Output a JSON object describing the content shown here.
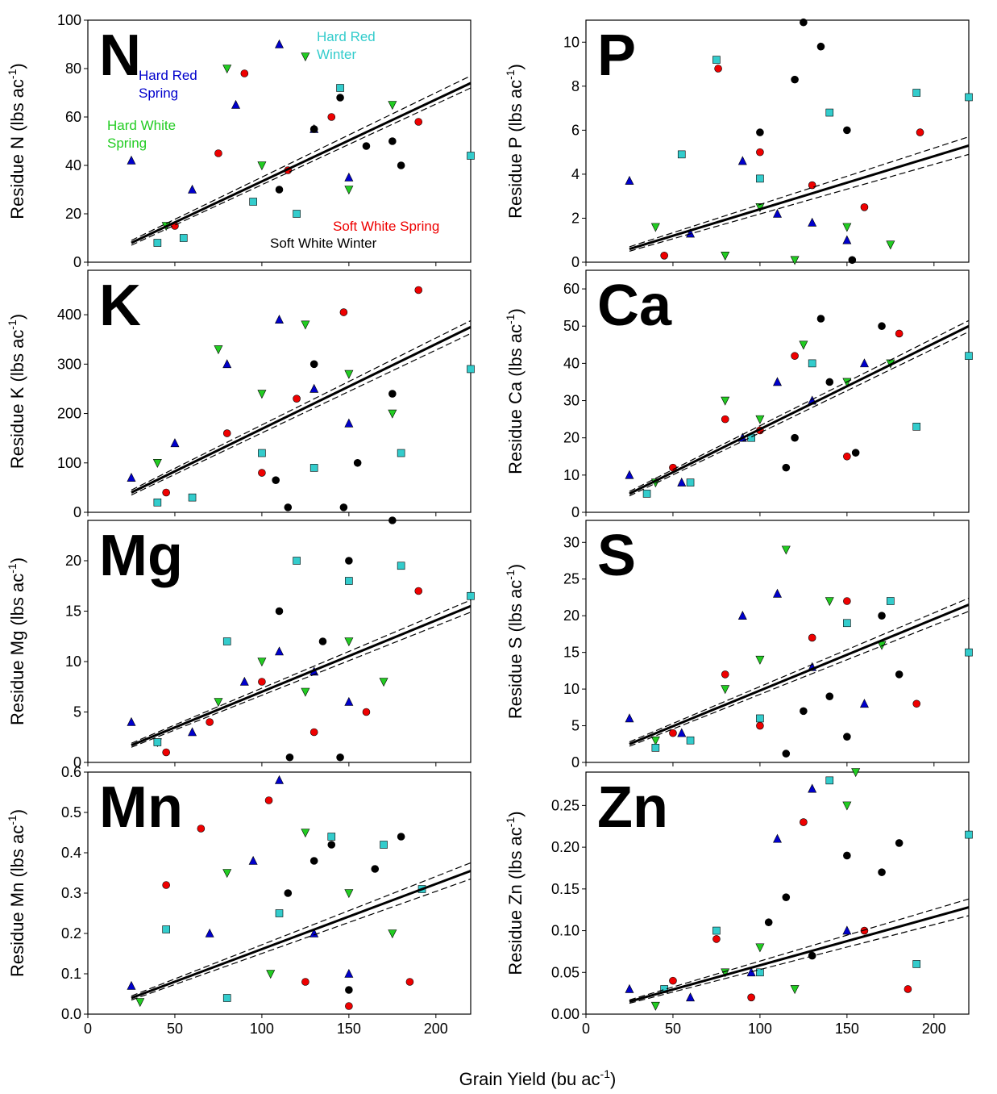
{
  "chart_data": {
    "type": "scatter",
    "xlabel": {
      "text": "Grain Yield (bu ac",
      "sup": "-1",
      "end": ")"
    },
    "xlim": [
      0,
      220
    ],
    "xticks": [
      0,
      50,
      100,
      150,
      200
    ],
    "series_styles": [
      {
        "name": [
          "Hard Red",
          "Spring"
        ],
        "color": "#0000cc",
        "marker": "triangle-up"
      },
      {
        "name": [
          "Hard White",
          "Spring"
        ],
        "color": "#22cc22",
        "marker": "triangle-down"
      },
      {
        "name": [
          "Hard Red",
          "Winter"
        ],
        "color": "#33cccc",
        "marker": "square"
      },
      {
        "name": [
          "Soft White Spring"
        ],
        "color": "#ee0000",
        "marker": "circle"
      },
      {
        "name": [
          "Soft White Winter"
        ],
        "color": "#000000",
        "marker": "circle"
      }
    ],
    "panels": [
      {
        "label": "N",
        "ylabel": {
          "text": "Residue N (lbs ac",
          "sup": "-1",
          "end": ")"
        },
        "ylim": [
          0,
          100
        ],
        "yticks": [
          0,
          20,
          40,
          60,
          80,
          100
        ],
        "fit": {
          "x": [
            25,
            220
          ],
          "y": [
            8,
            74
          ],
          "upper": [
            9,
            77
          ],
          "lower": [
            7,
            72
          ]
        },
        "series": [
          {
            "x": [
              25,
              60,
              85,
              110,
              130,
              150
            ],
            "y": [
              42,
              30,
              65,
              90,
              55,
              35
            ]
          },
          {
            "x": [
              45,
              80,
              100,
              125,
              150,
              175
            ],
            "y": [
              15,
              80,
              40,
              85,
              30,
              65
            ]
          },
          {
            "x": [
              40,
              55,
              95,
              120,
              145,
              220
            ],
            "y": [
              8,
              10,
              25,
              20,
              72,
              44
            ]
          },
          {
            "x": [
              50,
              75,
              90,
              115,
              140,
              190
            ],
            "y": [
              15,
              45,
              78,
              38,
              60,
              58
            ]
          },
          {
            "x": [
              110,
              130,
              145,
              160,
              175,
              180
            ],
            "y": [
              30,
              55,
              68,
              48,
              50,
              40
            ]
          }
        ]
      },
      {
        "label": "P",
        "ylabel": {
          "text": "Residue P (lbs ac",
          "sup": "-1",
          "end": ")"
        },
        "ylim": [
          0,
          11
        ],
        "yticks": [
          0,
          2,
          4,
          6,
          8,
          10
        ],
        "fit": {
          "x": [
            25,
            220
          ],
          "y": [
            0.6,
            5.3
          ],
          "upper": [
            0.7,
            5.7
          ],
          "lower": [
            0.5,
            4.9
          ]
        },
        "series": [
          {
            "x": [
              25,
              60,
              90,
              110,
              130,
              150
            ],
            "y": [
              3.7,
              1.3,
              4.6,
              2.2,
              1.8,
              1.0
            ]
          },
          {
            "x": [
              40,
              80,
              100,
              120,
              150,
              175
            ],
            "y": [
              1.6,
              0.3,
              2.5,
              0.1,
              1.6,
              0.8
            ]
          },
          {
            "x": [
              55,
              75,
              100,
              140,
              190,
              220
            ],
            "y": [
              4.9,
              9.2,
              3.8,
              6.8,
              7.7,
              7.5
            ]
          },
          {
            "x": [
              45,
              76,
              100,
              130,
              160,
              192
            ],
            "y": [
              0.3,
              8.8,
              5.0,
              3.5,
              2.5,
              5.9
            ]
          },
          {
            "x": [
              100,
              120,
              125,
              135,
              150,
              153
            ],
            "y": [
              5.9,
              8.3,
              10.9,
              9.8,
              6.0,
              0.1
            ]
          }
        ]
      },
      {
        "label": "K",
        "ylabel": {
          "text": "Residue K (lbs ac",
          "sup": "-1",
          "end": ")"
        },
        "ylim": [
          0,
          490
        ],
        "yticks": [
          0,
          100,
          200,
          300,
          400
        ],
        "fit": {
          "x": [
            25,
            220
          ],
          "y": [
            40,
            375
          ],
          "upper": [
            45,
            388
          ],
          "lower": [
            35,
            362
          ]
        },
        "series": [
          {
            "x": [
              25,
              50,
              80,
              110,
              130,
              150
            ],
            "y": [
              70,
              140,
              300,
              390,
              250,
              180
            ]
          },
          {
            "x": [
              40,
              75,
              100,
              125,
              150,
              175
            ],
            "y": [
              100,
              330,
              240,
              380,
              280,
              200
            ]
          },
          {
            "x": [
              40,
              60,
              100,
              130,
              180,
              220
            ],
            "y": [
              20,
              30,
              120,
              90,
              120,
              290
            ]
          },
          {
            "x": [
              45,
              80,
              100,
              120,
              147,
              190
            ],
            "y": [
              40,
              160,
              80,
              230,
              405,
              450
            ]
          },
          {
            "x": [
              108,
              115,
              130,
              147,
              155,
              175
            ],
            "y": [
              65,
              10,
              300,
              10,
              100,
              240
            ]
          }
        ]
      },
      {
        "label": "Ca",
        "ylabel": {
          "text": "Residue Ca (lbs ac",
          "sup": "-1",
          "end": ")"
        },
        "ylim": [
          0,
          65
        ],
        "yticks": [
          0,
          10,
          20,
          30,
          40,
          50,
          60
        ],
        "fit": {
          "x": [
            25,
            220
          ],
          "y": [
            5,
            50
          ],
          "upper": [
            5.6,
            51.5
          ],
          "lower": [
            4.4,
            48.5
          ]
        },
        "series": [
          {
            "x": [
              25,
              55,
              90,
              110,
              130,
              160
            ],
            "y": [
              10,
              8,
              20,
              35,
              30,
              40
            ]
          },
          {
            "x": [
              40,
              80,
              100,
              125,
              150,
              175
            ],
            "y": [
              8,
              30,
              25,
              45,
              35,
              40
            ]
          },
          {
            "x": [
              35,
              60,
              95,
              130,
              190,
              220
            ],
            "y": [
              5,
              8,
              20,
              40,
              23,
              42
            ]
          },
          {
            "x": [
              50,
              80,
              100,
              120,
              150,
              180
            ],
            "y": [
              12,
              25,
              22,
              42,
              15,
              48
            ]
          },
          {
            "x": [
              115,
              120,
              135,
              140,
              155,
              170
            ],
            "y": [
              12,
              20,
              52,
              35,
              16,
              50
            ]
          }
        ]
      },
      {
        "label": "Mg",
        "ylabel": {
          "text": "Residue Mg (lbs ac",
          "sup": "-1",
          "end": ")"
        },
        "ylim": [
          0,
          24
        ],
        "yticks": [
          0,
          5,
          10,
          15,
          20
        ],
        "fit": {
          "x": [
            25,
            220
          ],
          "y": [
            1.7,
            15.5
          ],
          "upper": [
            1.9,
            16.1
          ],
          "lower": [
            1.5,
            14.9
          ]
        },
        "series": [
          {
            "x": [
              25,
              60,
              90,
              110,
              130,
              150
            ],
            "y": [
              4,
              3,
              8,
              11,
              9,
              6
            ]
          },
          {
            "x": [
              40,
              75,
              100,
              125,
              150,
              170
            ],
            "y": [
              2,
              6,
              10,
              7,
              12,
              8
            ]
          },
          {
            "x": [
              40,
              80,
              120,
              150,
              180,
              220
            ],
            "y": [
              2,
              12,
              20,
              18,
              19.5,
              16.5
            ]
          },
          {
            "x": [
              45,
              70,
              100,
              130,
              160,
              190
            ],
            "y": [
              1,
              4,
              8,
              3,
              5,
              17
            ]
          },
          {
            "x": [
              110,
              116,
              135,
              145,
              150,
              175
            ],
            "y": [
              15,
              0.5,
              12,
              0.5,
              20,
              24
            ]
          }
        ]
      },
      {
        "label": "S",
        "ylabel": {
          "text": "Residue S (lbs ac",
          "sup": "-1",
          "end": ")"
        },
        "ylim": [
          0,
          33
        ],
        "yticks": [
          0,
          5,
          10,
          15,
          20,
          25,
          30
        ],
        "fit": {
          "x": [
            25,
            220
          ],
          "y": [
            2.5,
            21.5
          ],
          "upper": [
            2.8,
            22.4
          ],
          "lower": [
            2.2,
            20.6
          ]
        },
        "series": [
          {
            "x": [
              25,
              55,
              90,
              110,
              130,
              160
            ],
            "y": [
              6,
              4,
              20,
              23,
              13,
              8
            ]
          },
          {
            "x": [
              40,
              80,
              100,
              115,
              140,
              170
            ],
            "y": [
              3,
              10,
              14,
              29,
              22,
              16
            ]
          },
          {
            "x": [
              40,
              60,
              100,
              150,
              175,
              220
            ],
            "y": [
              2,
              3,
              6,
              19,
              22,
              15
            ]
          },
          {
            "x": [
              50,
              80,
              100,
              130,
              150,
              190
            ],
            "y": [
              4,
              12,
              5,
              17,
              22,
              8
            ]
          },
          {
            "x": [
              115,
              125,
              140,
              150,
              170,
              180
            ],
            "y": [
              1.2,
              7,
              9,
              3.5,
              20,
              12
            ]
          }
        ]
      },
      {
        "label": "Mn",
        "ylabel": {
          "text": "Residue Mn (lbs ac",
          "sup": "-1",
          "end": ")"
        },
        "ylim": [
          0,
          0.6
        ],
        "yticks": [
          {
            "value": 0,
            "label": "0.0"
          },
          {
            "value": 0.1,
            "label": "0.1"
          },
          {
            "value": 0.2,
            "label": "0.2"
          },
          {
            "value": 0.3,
            "label": "0.3"
          },
          {
            "value": 0.4,
            "label": "0.4"
          },
          {
            "value": 0.5,
            "label": "0.5"
          },
          {
            "value": 0.6,
            "label": "0.6"
          }
        ],
        "fit": {
          "x": [
            25,
            220
          ],
          "y": [
            0.04,
            0.355
          ],
          "upper": [
            0.045,
            0.375
          ],
          "lower": [
            0.035,
            0.335
          ]
        },
        "series": [
          {
            "x": [
              25,
              70,
              95,
              110,
              130,
              150
            ],
            "y": [
              0.07,
              0.2,
              0.38,
              0.58,
              0.2,
              0.1
            ]
          },
          {
            "x": [
              30,
              80,
              105,
              125,
              150,
              175
            ],
            "y": [
              0.03,
              0.35,
              0.1,
              0.45,
              0.3,
              0.2
            ]
          },
          {
            "x": [
              45,
              80,
              110,
              140,
              170,
              192
            ],
            "y": [
              0.21,
              0.04,
              0.25,
              0.44,
              0.42,
              0.31
            ]
          },
          {
            "x": [
              45,
              65,
              104,
              125,
              150,
              185
            ],
            "y": [
              0.32,
              0.46,
              0.53,
              0.08,
              0.02,
              0.08
            ]
          },
          {
            "x": [
              115,
              130,
              140,
              150,
              165,
              180
            ],
            "y": [
              0.3,
              0.38,
              0.42,
              0.06,
              0.36,
              0.44
            ]
          }
        ]
      },
      {
        "label": "Zn",
        "ylabel": {
          "text": "Residue Zn (lbs ac",
          "sup": "-1",
          "end": ")"
        },
        "ylim": [
          0,
          0.29
        ],
        "yticks": [
          {
            "value": 0,
            "label": "0.00"
          },
          {
            "value": 0.05,
            "label": "0.05"
          },
          {
            "value": 0.1,
            "label": "0.10"
          },
          {
            "value": 0.15,
            "label": "0.15"
          },
          {
            "value": 0.2,
            "label": "0.20"
          },
          {
            "value": 0.25,
            "label": "0.25"
          }
        ],
        "fit": {
          "x": [
            25,
            220
          ],
          "y": [
            0.015,
            0.128
          ],
          "upper": [
            0.017,
            0.138
          ],
          "lower": [
            0.013,
            0.118
          ]
        },
        "series": [
          {
            "x": [
              25,
              60,
              95,
              110,
              130,
              150
            ],
            "y": [
              0.03,
              0.02,
              0.05,
              0.21,
              0.27,
              0.1
            ]
          },
          {
            "x": [
              40,
              80,
              100,
              120,
              150,
              155
            ],
            "y": [
              0.01,
              0.05,
              0.08,
              0.03,
              0.25,
              0.29
            ]
          },
          {
            "x": [
              45,
              75,
              100,
              140,
              190,
              220
            ],
            "y": [
              0.03,
              0.1,
              0.05,
              0.28,
              0.06,
              0.215
            ]
          },
          {
            "x": [
              50,
              75,
              95,
              125,
              160,
              185
            ],
            "y": [
              0.04,
              0.09,
              0.02,
              0.23,
              0.1,
              0.03
            ]
          },
          {
            "x": [
              105,
              115,
              130,
              150,
              170,
              180
            ],
            "y": [
              0.11,
              0.14,
              0.07,
              0.19,
              0.17,
              0.205
            ]
          }
        ]
      }
    ]
  }
}
